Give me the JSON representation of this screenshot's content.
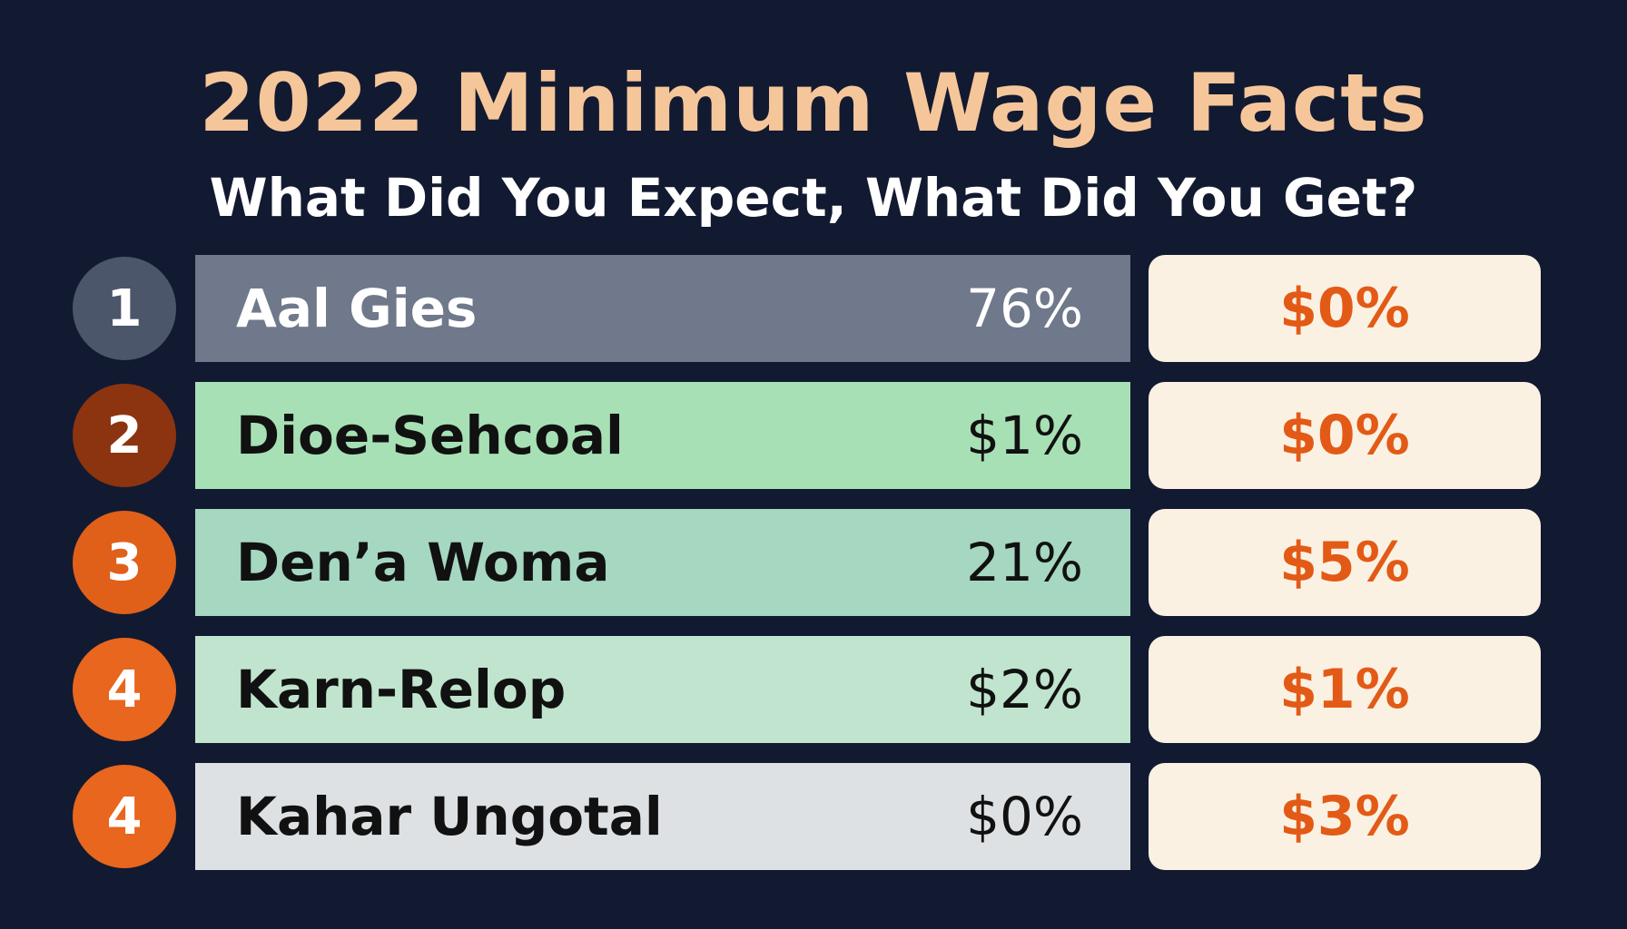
{
  "header": {
    "title": "2022 Minimum Wage Facts",
    "subtitle": "What Did You Expect, What Did You Get?"
  },
  "rows": [
    {
      "rank": "1",
      "name": "Aal Gies",
      "expected": "76%",
      "got": "$0%"
    },
    {
      "rank": "2",
      "name": "Dioe-Sehcoal",
      "expected": "$1%",
      "got": "$0%"
    },
    {
      "rank": "3",
      "name": "Den’a Woma",
      "expected": "21%",
      "got": "$5%"
    },
    {
      "rank": "4",
      "name": "Karn-Relop",
      "expected": "$2%",
      "got": "$1%"
    },
    {
      "rank": "4",
      "name": "Kahar Ungotal",
      "expected": "$0%",
      "got": "$3%"
    }
  ]
}
